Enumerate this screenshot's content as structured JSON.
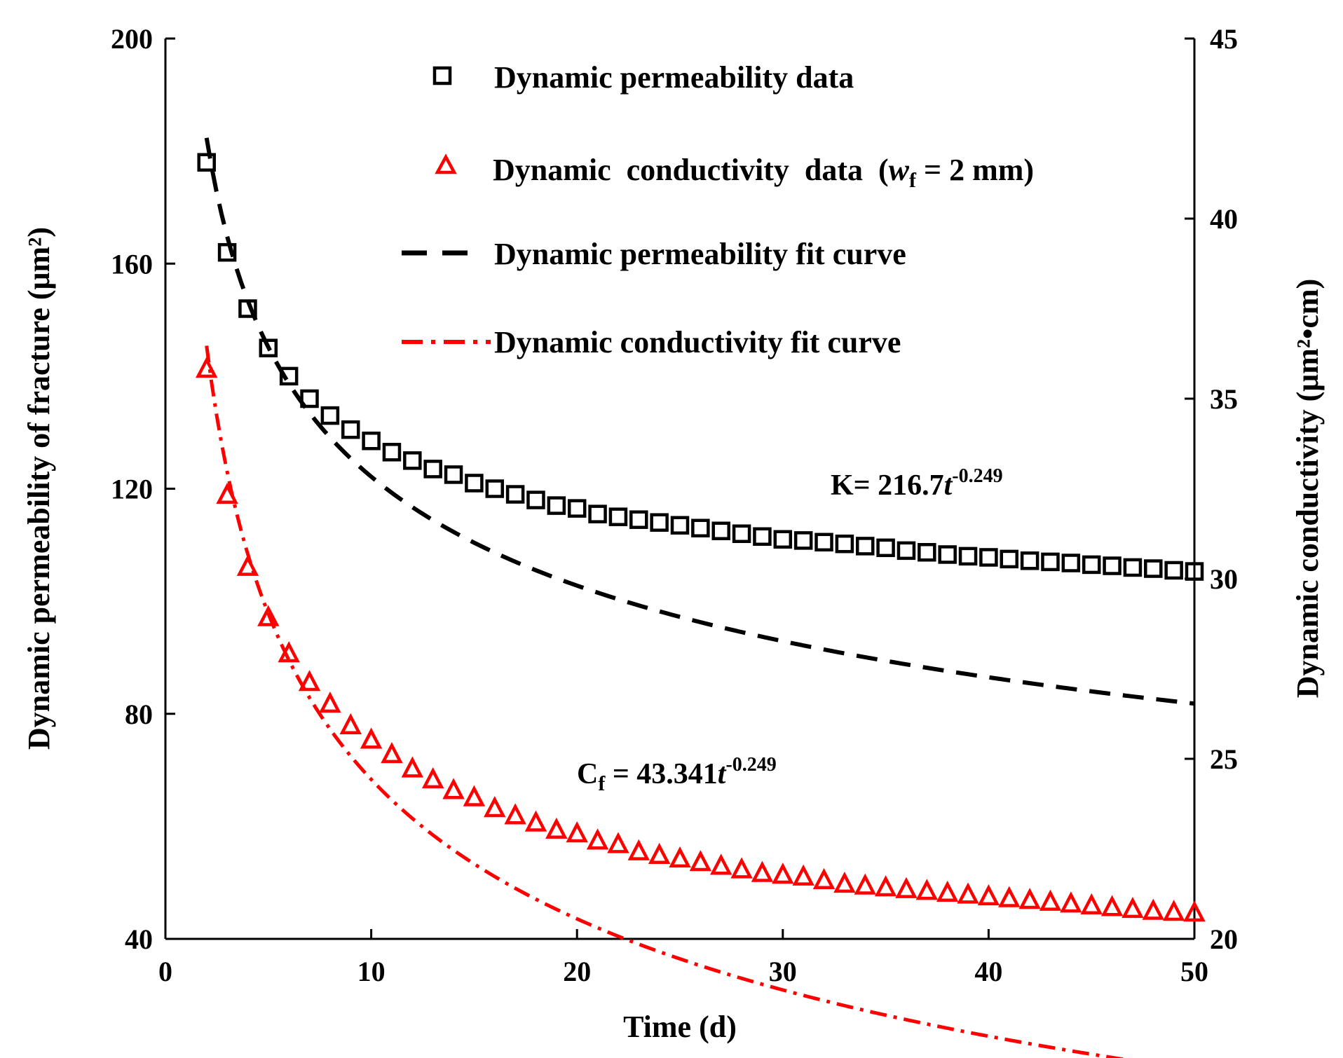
{
  "chart_data": {
    "type": "scatter",
    "title": "",
    "xlabel": "Time (d)",
    "ylabel_left": "Dynamic permeability of fracture (μm²)",
    "ylabel_right": "Dynamic conductivity (μm²•cm)",
    "xlim": [
      0,
      50
    ],
    "ylim_left": [
      40,
      200
    ],
    "ylim_right": [
      20,
      45
    ],
    "x_ticks": [
      0,
      10,
      20,
      30,
      40,
      50
    ],
    "y_left_ticks": [
      40,
      80,
      120,
      160,
      200
    ],
    "y_right_ticks": [
      20,
      25,
      30,
      35,
      40,
      45
    ],
    "grid": false,
    "legend_position": "top-center",
    "legend": [
      {
        "key": "perm_data",
        "label": "Dynamic permeability data",
        "marker": "square",
        "color": "#000000"
      },
      {
        "key": "cond_data",
        "label_prefix": "Dynamic  conductivity  data  (",
        "label_var": "w",
        "label_sub": "f",
        "label_suffix": " = 2 mm)",
        "marker": "triangle",
        "color": "#ff0000"
      },
      {
        "key": "perm_fit",
        "label": "Dynamic permeability fit curve",
        "line": "dash",
        "color": "#000000"
      },
      {
        "key": "cond_fit",
        "label": "Dynamic conductivity fit curve",
        "line": "dashdot",
        "color": "#ff0000"
      }
    ],
    "annotations": [
      {
        "key": "perm_eq",
        "base": "K= 216.7",
        "var": "t",
        "exp": "-0.249"
      },
      {
        "key": "cond_eq",
        "base": "C",
        "sub": "f",
        "mid": " = 43.341",
        "var": "t",
        "exp": "-0.249"
      }
    ],
    "series": [
      {
        "name": "Dynamic permeability data",
        "axis": "left",
        "color": "#000000",
        "marker": "square",
        "x": [
          2,
          3,
          4,
          5,
          6,
          7,
          8,
          9,
          10,
          11,
          12,
          13,
          14,
          15,
          16,
          17,
          18,
          19,
          20,
          21,
          22,
          23,
          24,
          25,
          26,
          27,
          28,
          29,
          30,
          31,
          32,
          33,
          34,
          35,
          36,
          37,
          38,
          39,
          40,
          41,
          42,
          43,
          44,
          45,
          46,
          47,
          48,
          49,
          50
        ],
        "y": [
          178,
          162,
          152,
          145,
          140,
          136,
          133,
          130.5,
          128.5,
          126.5,
          125,
          123.5,
          122.5,
          121,
          120,
          119,
          118,
          117,
          116.5,
          115.5,
          115,
          114.5,
          114,
          113.5,
          113,
          112.5,
          112,
          111.5,
          111,
          110.8,
          110.5,
          110.2,
          109.8,
          109.5,
          109,
          108.7,
          108.3,
          108,
          107.8,
          107.5,
          107.2,
          107,
          106.8,
          106.5,
          106.3,
          106,
          105.8,
          105.5,
          105.3
        ]
      },
      {
        "name": "Dynamic conductivity data",
        "axis": "right",
        "color": "#ff0000",
        "marker": "triangle",
        "x": [
          2,
          3,
          4,
          5,
          6,
          7,
          8,
          9,
          10,
          11,
          12,
          13,
          14,
          15,
          16,
          17,
          18,
          19,
          20,
          21,
          22,
          23,
          24,
          25,
          26,
          27,
          28,
          29,
          30,
          31,
          32,
          33,
          34,
          35,
          36,
          37,
          38,
          39,
          40,
          41,
          42,
          43,
          44,
          45,
          46,
          47,
          48,
          49,
          50
        ],
        "y": [
          35.8,
          32.3,
          30.3,
          28.9,
          27.9,
          27.1,
          26.5,
          25.9,
          25.5,
          25.1,
          24.7,
          24.4,
          24.1,
          23.9,
          23.6,
          23.4,
          23.2,
          23.0,
          22.9,
          22.7,
          22.6,
          22.4,
          22.3,
          22.2,
          22.1,
          22.0,
          21.9,
          21.8,
          21.75,
          21.7,
          21.6,
          21.5,
          21.45,
          21.4,
          21.35,
          21.3,
          21.25,
          21.2,
          21.15,
          21.1,
          21.05,
          21.0,
          20.95,
          20.9,
          20.85,
          20.8,
          20.75,
          20.72,
          20.7
        ]
      },
      {
        "name": "Dynamic permeability fit curve",
        "axis": "left",
        "color": "#000000",
        "line": "dash",
        "equation": {
          "a": 216.7,
          "b": -0.249
        },
        "x_range": [
          2,
          50
        ]
      },
      {
        "name": "Dynamic conductivity fit curve",
        "axis": "right",
        "color": "#ff0000",
        "line": "dashdot",
        "equation": {
          "a": 43.341,
          "b": -0.249
        },
        "x_range": [
          2,
          50
        ]
      }
    ]
  }
}
